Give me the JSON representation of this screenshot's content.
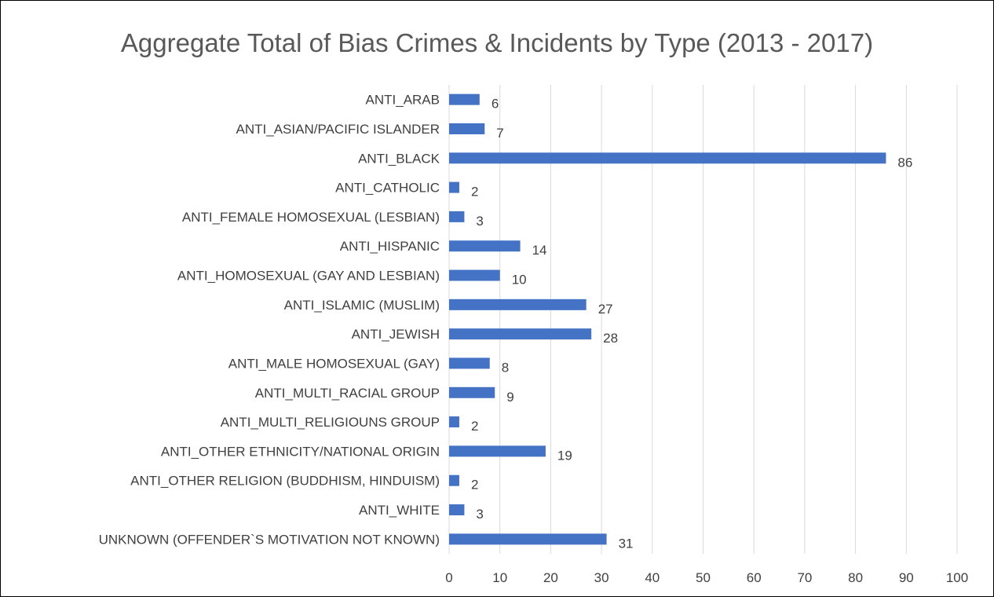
{
  "chart_data": {
    "type": "bar",
    "orientation": "horizontal",
    "title": "Aggregate Total of Bias Crimes & Incidents by Type (2013 - 2017)",
    "xlabel": "",
    "ylabel": "",
    "categories": [
      "ANTI_ARAB",
      "ANTI_ASIAN/PACIFIC ISLANDER",
      "ANTI_BLACK",
      "ANTI_CATHOLIC",
      "ANTI_FEMALE HOMOSEXUAL (LESBIAN)",
      "ANTI_HISPANIC",
      "ANTI_HOMOSEXUAL (GAY AND LESBIAN)",
      "ANTI_ISLAMIC (MUSLIM)",
      "ANTI_JEWISH",
      "ANTI_MALE HOMOSEXUAL (GAY)",
      "ANTI_MULTI_RACIAL GROUP",
      "ANTI_MULTI_RELIGIOUNS GROUP",
      "ANTI_OTHER ETHNICITY/NATIONAL ORIGIN",
      "ANTI_OTHER RELIGION (BUDDHISM, HINDUISM)",
      "ANTI_WHITE",
      "UNKNOWN (OFFENDER`S MOTIVATION NOT KNOWN)"
    ],
    "values": [
      6,
      7,
      86,
      2,
      3,
      14,
      10,
      27,
      28,
      8,
      9,
      2,
      19,
      2,
      3,
      31
    ],
    "xlim": [
      0,
      100
    ],
    "xticks": [
      "0",
      "10",
      "20",
      "30",
      "40",
      "50",
      "60",
      "70",
      "80",
      "90",
      "100"
    ],
    "data_labels": true,
    "grid": "vertical",
    "legend": "none",
    "bar_color": "#4472C4",
    "grid_color": "#D9D9D9",
    "text_color": "#404040",
    "title_color": "#595959"
  }
}
